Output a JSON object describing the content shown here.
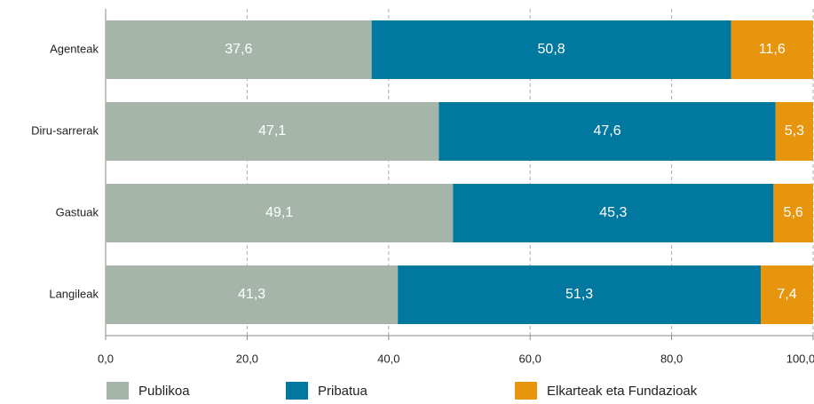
{
  "chart_data": {
    "type": "stacked_barh",
    "categories": [
      "Agenteak",
      "Diru-sarrerak",
      "Gastuak",
      "Langileak"
    ],
    "series": [
      {
        "name": "Publikoa",
        "color": "#a6b5a9",
        "values": [
          37.6,
          47.1,
          49.1,
          41.3
        ],
        "value_labels": [
          "37,6",
          "47,1",
          "49,1",
          "41,3"
        ]
      },
      {
        "name": "Pribatua",
        "color": "#00789f",
        "values": [
          50.8,
          47.6,
          45.3,
          51.3
        ],
        "value_labels": [
          "50,8",
          "47,6",
          "45,3",
          "51,3"
        ]
      },
      {
        "name": "Elkarteak eta Fundazioak",
        "color": "#e8950e",
        "values": [
          11.6,
          5.3,
          5.6,
          7.4
        ],
        "value_labels": [
          "11,6",
          "5,3",
          "5,6",
          "7,4"
        ]
      }
    ],
    "xlim": [
      0,
      100
    ],
    "xticks": [
      {
        "value": 0,
        "label": "0,0"
      },
      {
        "value": 20,
        "label": "20,0"
      },
      {
        "value": 40,
        "label": "40,0"
      },
      {
        "value": 60,
        "label": "60,0"
      },
      {
        "value": 80,
        "label": "80,0"
      },
      {
        "value": 100,
        "label": "100,0"
      }
    ],
    "grid": true
  }
}
